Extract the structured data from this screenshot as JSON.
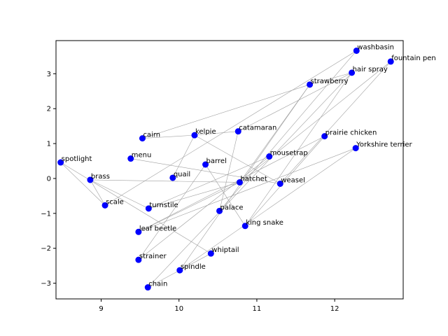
{
  "chart_data": {
    "type": "scatter",
    "title": "",
    "xlabel": "",
    "ylabel": "",
    "xlim": [
      8.42,
      12.88
    ],
    "ylim": [
      -3.45,
      3.95
    ],
    "xticks": [
      9,
      10,
      11,
      12
    ],
    "yticks": [
      -3,
      -2,
      -1,
      0,
      1,
      2,
      3
    ],
    "grid": false,
    "marker_color": "#0000ff",
    "edge_color": "#a0a0a0",
    "points": [
      {
        "label": "washbasin",
        "x": 12.28,
        "y": 3.66
      },
      {
        "label": "fountain pen",
        "x": 12.72,
        "y": 3.35
      },
      {
        "label": "hair spray",
        "x": 12.22,
        "y": 3.03
      },
      {
        "label": "strawberry",
        "x": 11.68,
        "y": 2.69
      },
      {
        "label": "catamaran",
        "x": 10.76,
        "y": 1.35
      },
      {
        "label": "kelpie",
        "x": 10.2,
        "y": 1.24
      },
      {
        "label": "cairn",
        "x": 9.53,
        "y": 1.15
      },
      {
        "label": "prairie chicken",
        "x": 11.87,
        "y": 1.21
      },
      {
        "label": "Yorkshire terrier",
        "x": 12.27,
        "y": 0.87
      },
      {
        "label": "mousetrap",
        "x": 11.16,
        "y": 0.63
      },
      {
        "label": "menu",
        "x": 9.38,
        "y": 0.57
      },
      {
        "label": "spotlight",
        "x": 8.48,
        "y": 0.46
      },
      {
        "label": "barrel",
        "x": 10.34,
        "y": 0.4
      },
      {
        "label": "quail",
        "x": 9.92,
        "y": 0.02
      },
      {
        "label": "brass",
        "x": 8.86,
        "y": -0.04
      },
      {
        "label": "hatchet",
        "x": 10.78,
        "y": -0.11
      },
      {
        "label": "weasel",
        "x": 11.3,
        "y": -0.15
      },
      {
        "label": "scale",
        "x": 9.05,
        "y": -0.77
      },
      {
        "label": "turnstile",
        "x": 9.61,
        "y": -0.86
      },
      {
        "label": "palace",
        "x": 10.52,
        "y": -0.93
      },
      {
        "label": "king snake",
        "x": 10.85,
        "y": -1.36
      },
      {
        "label": "leaf beetle",
        "x": 9.48,
        "y": -1.53
      },
      {
        "label": "whiptail",
        "x": 10.41,
        "y": -2.15
      },
      {
        "label": "strainer",
        "x": 9.48,
        "y": -2.33
      },
      {
        "label": "spindle",
        "x": 10.01,
        "y": -2.63
      },
      {
        "label": "chain",
        "x": 9.6,
        "y": -3.12
      }
    ],
    "edges": [
      [
        "spotlight",
        "scale"
      ],
      [
        "spotlight",
        "whiptail"
      ],
      [
        "brass",
        "scale"
      ],
      [
        "brass",
        "turnstile"
      ],
      [
        "brass",
        "hatchet"
      ],
      [
        "menu",
        "weasel"
      ],
      [
        "cairn",
        "kelpie"
      ],
      [
        "cairn",
        "strawberry"
      ],
      [
        "kelpie",
        "catamaran"
      ],
      [
        "kelpie",
        "weasel"
      ],
      [
        "kelpie",
        "quail"
      ],
      [
        "catamaran",
        "palace"
      ],
      [
        "catamaran",
        "hair spray"
      ],
      [
        "scale",
        "washbasin"
      ],
      [
        "turnstile",
        "mousetrap"
      ],
      [
        "turnstile",
        "hatchet"
      ],
      [
        "barrel",
        "king snake"
      ],
      [
        "barrel",
        "strainer"
      ],
      [
        "hatchet",
        "strawberry"
      ],
      [
        "hatchet",
        "fountain pen"
      ],
      [
        "palace",
        "washbasin"
      ],
      [
        "king snake",
        "hair spray"
      ],
      [
        "king snake",
        "prairie chicken"
      ],
      [
        "leaf beetle",
        "prairie chicken"
      ],
      [
        "leaf beetle",
        "Yorkshire terrier"
      ],
      [
        "leaf beetle",
        "hatchet"
      ],
      [
        "strainer",
        "mousetrap"
      ],
      [
        "spindle",
        "Yorkshire terrier"
      ],
      [
        "spindle",
        "strawberry"
      ],
      [
        "chain",
        "whiptail"
      ],
      [
        "chain",
        "hair spray"
      ],
      [
        "weasel",
        "fountain pen"
      ],
      [
        "strawberry",
        "hair spray"
      ]
    ]
  }
}
